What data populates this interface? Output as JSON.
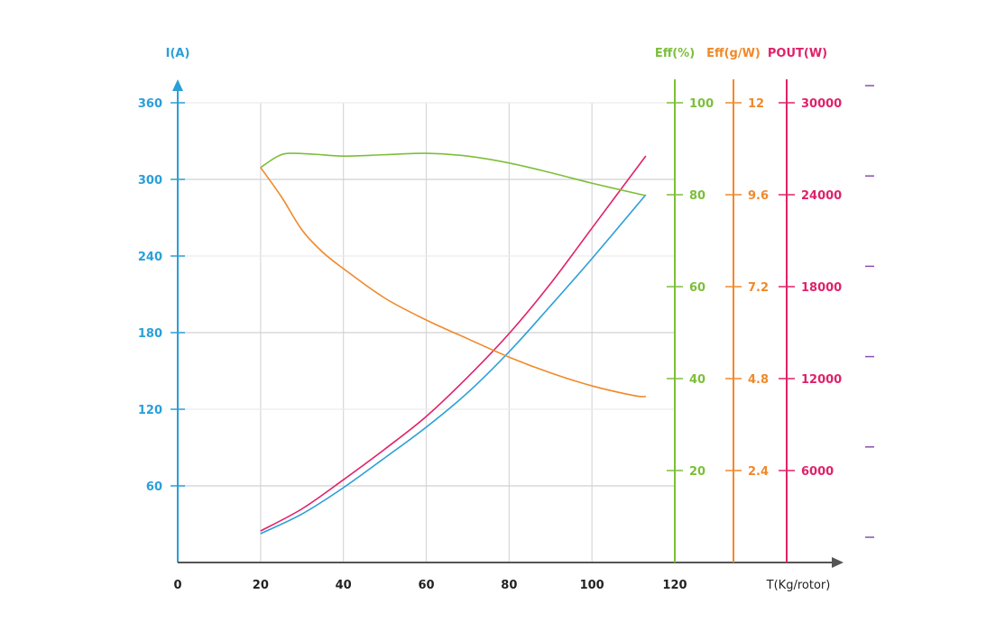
{
  "chart_data": {
    "type": "line",
    "xlabel": "T(Kg/rotor)",
    "xlim": [
      0,
      120
    ],
    "x_ticks": [
      0,
      20,
      40,
      60,
      80,
      100,
      120
    ],
    "axes": {
      "current": {
        "label": "I(A)",
        "range": [
          0,
          360
        ],
        "ticks": [
          60,
          120,
          180,
          240,
          300,
          360
        ],
        "color": "#2a9fd8"
      },
      "eff_pct": {
        "label": "Eff(%)",
        "range": [
          0,
          100
        ],
        "ticks": [
          20,
          40,
          60,
          80,
          100
        ],
        "color": "#7cbf3a"
      },
      "eff_gw": {
        "label": "Eff(g/W)",
        "range": [
          0,
          12
        ],
        "ticks": [
          "2.4",
          "4.8",
          "7.2",
          "9.6",
          "12"
        ],
        "color": "#f0892a"
      },
      "pout": {
        "label": "POUT(W)",
        "range": [
          0,
          30000
        ],
        "ticks": [
          6000,
          12000,
          18000,
          24000,
          30000
        ],
        "color": "#e0226a"
      }
    },
    "series": [
      {
        "name": "I(A)",
        "axis": "current",
        "x": [
          20,
          30,
          40,
          50,
          60,
          70,
          80,
          90,
          100,
          113
        ],
        "y": [
          22.6,
          38,
          58.6,
          82,
          106,
          133,
          165,
          201,
          238,
          288
        ]
      },
      {
        "name": "POUT(W)",
        "axis": "pout",
        "x": [
          20,
          30,
          40,
          50,
          60,
          70,
          80,
          90,
          100,
          113
        ],
        "y": [
          2060,
          3500,
          5400,
          7400,
          9530,
          12100,
          14940,
          18200,
          21820,
          26530
        ]
      },
      {
        "name": "Eff(%)",
        "axis": "eff_pct",
        "x": [
          20,
          24,
          27,
          33,
          40,
          50,
          60,
          70,
          80,
          90,
          100,
          113
        ],
        "y": [
          85.9,
          88.3,
          89,
          88.8,
          88.4,
          88.7,
          89,
          88.4,
          86.9,
          84.8,
          82.5,
          79.8
        ]
      },
      {
        "name": "Eff(g/W)",
        "axis": "eff_gw",
        "x": [
          20,
          25,
          30,
          35,
          40,
          50,
          60,
          70,
          80,
          90,
          100,
          110,
          113
        ],
        "y": [
          10.31,
          9.55,
          8.68,
          8.1,
          7.67,
          6.9,
          6.33,
          5.84,
          5.36,
          4.95,
          4.61,
          4.36,
          4.33
        ]
      }
    ]
  }
}
